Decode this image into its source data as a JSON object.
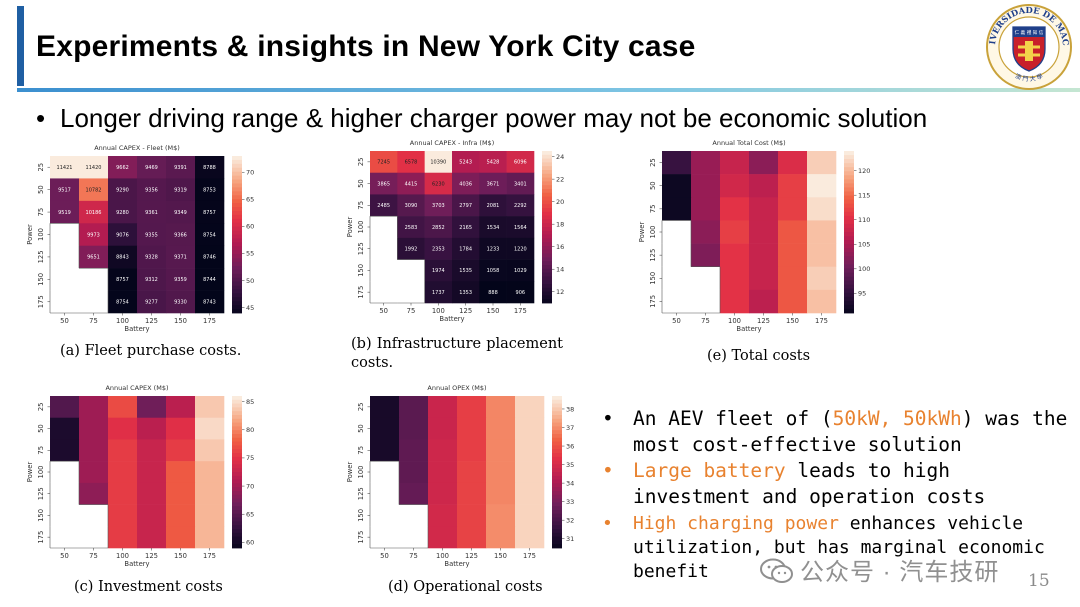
{
  "slide": {
    "title": "Experiments & insights in New York City case",
    "bullet_main": "Longer driving range & higher charger power may not be economic solution",
    "bullet_mark": "•",
    "page_number": "15",
    "watermark": "公众号 · 汽车技研"
  },
  "logo": {
    "ring_text_top": "UNIVERSIDADE DE MACAU",
    "ring_text_bottom": "澳 門 大 學",
    "inner_text": "仁 義 禮 知 信"
  },
  "insights": [
    {
      "mark": "•",
      "segments": [
        {
          "text": "An AEV fleet of (",
          "style": "normal"
        },
        {
          "text": "50kW, 50kWh",
          "style": "orange"
        },
        {
          "text": ") was the most cost-effective solution",
          "style": "normal"
        }
      ]
    },
    {
      "mark": "•",
      "segments": [
        {
          "text": "Large battery",
          "style": "orange"
        },
        {
          "text": " leads to high investment and operation costs",
          "style": "normal"
        }
      ]
    },
    {
      "mark": "•",
      "segments": [
        {
          "text": "High charging power",
          "style": "orange"
        },
        {
          "text": " enhances vehicle utilization, but has marginal economic benefit",
          "style": "normal"
        }
      ]
    }
  ],
  "colors": {
    "accent_bar": "#1f5fa3",
    "highlight": "#e8822f",
    "colormap": "rocket"
  },
  "chart_data": [
    {
      "id": "a",
      "type": "heatmap",
      "title": "Annual CAPEX - Fleet (M$)",
      "caption": "(a) Fleet purchase costs.",
      "xlabel": "Battery",
      "ylabel": "Power",
      "x": [
        "50",
        "75",
        "100",
        "125",
        "150",
        "175"
      ],
      "y": [
        "25",
        "50",
        "75",
        "100",
        "125",
        "150",
        "175"
      ],
      "values": [
        [
          11421,
          11420,
          9662,
          9469,
          9391,
          8788
        ],
        [
          9517,
          10782,
          9290,
          9356,
          9319,
          8753
        ],
        [
          9519,
          10186,
          9280,
          9361,
          9349,
          8757
        ],
        [
          null,
          9973,
          9076,
          9355,
          9366,
          8754
        ],
        [
          null,
          9651,
          8843,
          9328,
          9371,
          8746
        ],
        [
          null,
          null,
          8757,
          9312,
          9359,
          8744
        ],
        [
          null,
          null,
          8754,
          9277,
          9330,
          8743
        ]
      ],
      "show_annotations": true,
      "colorbar_ticks": [
        "70",
        "65",
        "60",
        "55",
        "50",
        "45"
      ],
      "colorbar_range": [
        44,
        73
      ]
    },
    {
      "id": "b",
      "type": "heatmap",
      "title": "Annual CAPEX - Infra (M$)",
      "caption": "(b) Infrastructure placement costs.",
      "xlabel": "Battery",
      "ylabel": "Power",
      "x": [
        "50",
        "75",
        "100",
        "125",
        "150",
        "175"
      ],
      "y": [
        "25",
        "50",
        "75",
        "100",
        "125",
        "150",
        "175"
      ],
      "values": [
        [
          7245,
          6578,
          10390,
          5243,
          5428,
          6096
        ],
        [
          3865,
          4415,
          6230,
          4036,
          3671,
          3401
        ],
        [
          2485,
          3090,
          3703,
          2797,
          2081,
          2292
        ],
        [
          null,
          2583,
          2852,
          2165,
          1534,
          1564
        ],
        [
          null,
          1992,
          2353,
          1784,
          1233,
          1220
        ],
        [
          null,
          null,
          1974,
          1535,
          1058,
          1029
        ],
        [
          null,
          null,
          1737,
          1353,
          888,
          906
        ]
      ],
      "show_annotations": true,
      "colorbar_ticks": [
        "24",
        "22",
        "20",
        "18",
        "16",
        "14",
        "12"
      ],
      "colorbar_range": [
        11,
        24.5
      ]
    },
    {
      "id": "e",
      "type": "heatmap",
      "title": "Annual Total Cost (M$)",
      "caption": "(e) Total costs",
      "xlabel": "Battery",
      "ylabel": "Power",
      "x": [
        "50",
        "75",
        "100",
        "125",
        "150",
        "175"
      ],
      "y": [
        "25",
        "50",
        "75",
        "100",
        "125",
        "150",
        "175"
      ],
      "values": [
        [
          96,
          104,
          108,
          103,
          110,
          122
        ],
        [
          92,
          104,
          109,
          107,
          112,
          124
        ],
        [
          92,
          104,
          111,
          108,
          112,
          123
        ],
        [
          null,
          103,
          112,
          108,
          114,
          121
        ],
        [
          null,
          102,
          111,
          108,
          114,
          121
        ],
        [
          null,
          null,
          111,
          108,
          114,
          122
        ],
        [
          null,
          null,
          111,
          107,
          114,
          121
        ]
      ],
      "show_annotations": false,
      "colorbar_ticks": [
        "120",
        "115",
        "110",
        "105",
        "100",
        "95"
      ],
      "colorbar_range": [
        91,
        124
      ]
    },
    {
      "id": "c",
      "type": "heatmap",
      "title": "Annual CAPEX (M$)",
      "caption": "(c) Investment costs",
      "xlabel": "Battery",
      "ylabel": "Power",
      "x": [
        "50",
        "75",
        "100",
        "125",
        "150",
        "175"
      ],
      "y": [
        "25",
        "50",
        "75",
        "100",
        "125",
        "150",
        "175"
      ],
      "values": [
        [
          65,
          70,
          77,
          67,
          72,
          84
        ],
        [
          61,
          70,
          75,
          72,
          75,
          85
        ],
        [
          61,
          70,
          76,
          73,
          76,
          84
        ],
        [
          null,
          70,
          76,
          73,
          78,
          83
        ],
        [
          null,
          69,
          76,
          73,
          78,
          83
        ],
        [
          null,
          null,
          76,
          73,
          78,
          83
        ],
        [
          null,
          null,
          76,
          73,
          78,
          83
        ]
      ],
      "show_annotations": false,
      "colorbar_ticks": [
        "85",
        "80",
        "75",
        "70",
        "65",
        "60"
      ],
      "colorbar_range": [
        59,
        86
      ]
    },
    {
      "id": "d",
      "type": "heatmap",
      "title": "Annual OPEX (M$)",
      "caption": "(d) Operational costs",
      "xlabel": "Battery",
      "ylabel": "Power",
      "x": [
        "50",
        "75",
        "100",
        "125",
        "150",
        "175"
      ],
      "y": [
        "25",
        "50",
        "75",
        "100",
        "125",
        "150",
        "175"
      ],
      "values": [
        [
          31.0,
          32.5,
          34.8,
          35.7,
          37.0,
          38.3
        ],
        [
          31.0,
          32.5,
          34.8,
          35.7,
          37.0,
          38.3
        ],
        [
          31.0,
          32.6,
          34.9,
          35.7,
          37.0,
          38.3
        ],
        [
          null,
          32.6,
          34.9,
          35.8,
          37.0,
          38.3
        ],
        [
          null,
          32.7,
          34.9,
          35.8,
          37.0,
          38.3
        ],
        [
          null,
          null,
          35.0,
          35.8,
          37.1,
          38.3
        ],
        [
          null,
          null,
          35.0,
          35.8,
          37.1,
          38.3
        ]
      ],
      "show_annotations": false,
      "colorbar_ticks": [
        "38",
        "37",
        "36",
        "35",
        "34",
        "33",
        "32",
        "31"
      ],
      "colorbar_range": [
        30.5,
        38.7
      ]
    }
  ]
}
